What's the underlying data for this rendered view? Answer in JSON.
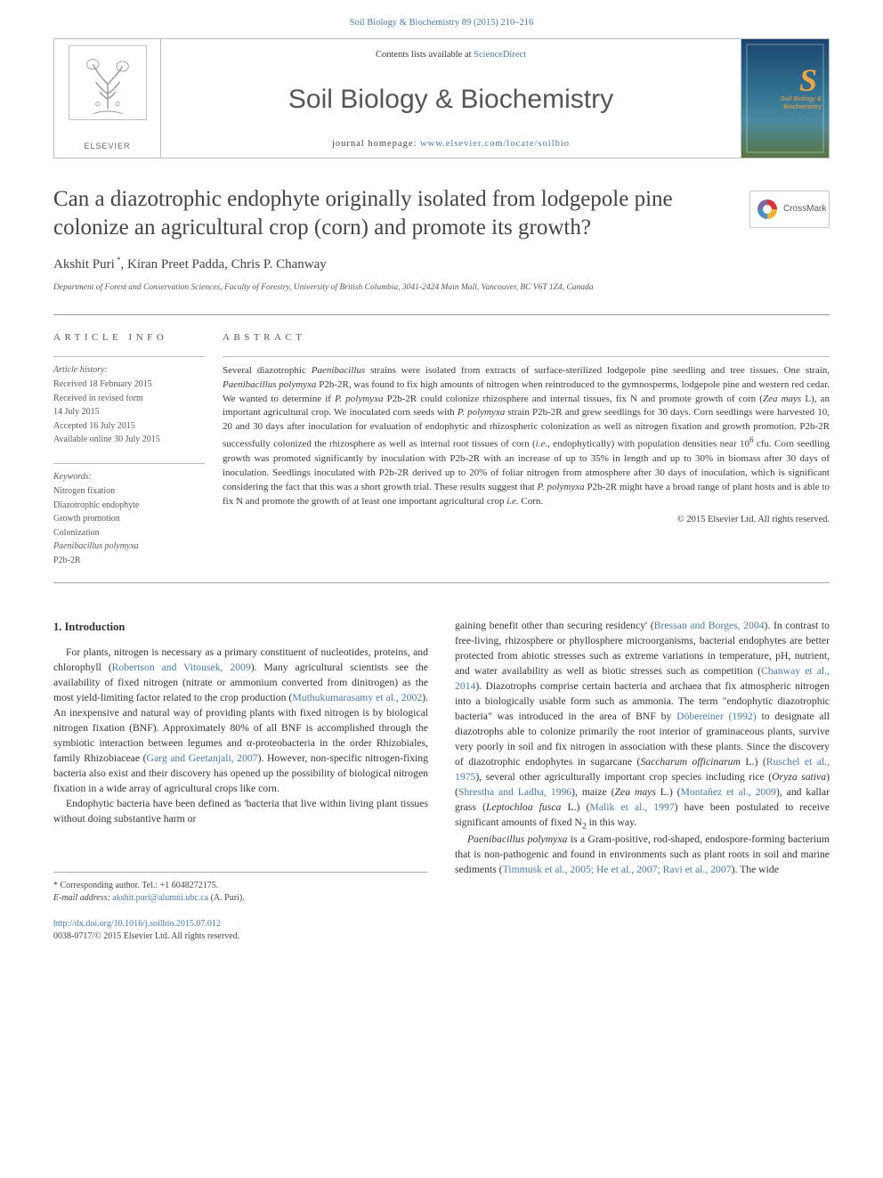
{
  "citation": "Soil Biology & Biochemistry 89 (2015) 210–216",
  "header": {
    "contents_prefix": "Contents lists available at ",
    "contents_link": "ScienceDirect",
    "journal": "Soil Biology & Biochemistry",
    "homepage_prefix": "journal homepage: ",
    "homepage_link": "www.elsevier.com/locate/soilbio",
    "publisher": "ELSEVIER",
    "cover_label": "Soil Biology &\nBiochemistry"
  },
  "colors": {
    "link": "#4a7aa8",
    "text": "#3a3a3a",
    "rule": "#9e9e9e",
    "cover_gradient_top": "#1a4570",
    "cover_gradient_bot": "#5a7540",
    "cover_accent": "#f4a340"
  },
  "crossmark": "CrossMark",
  "title": "Can a diazotrophic endophyte originally isolated from lodgepole pine colonize an agricultural crop (corn) and promote its growth?",
  "authors_html": "Akshit Puri<sup class='cor-star'> *</sup>, Kiran Preet Padda, Chris P. Chanway",
  "affiliation": "Department of Forest and Conservation Sciences, Faculty of Forestry, University of British Columbia, 3041-2424 Main Mall, Vancouver, BC V6T 1Z4, Canada",
  "article_info": {
    "heading": "article info",
    "history_label": "Article history:",
    "history": [
      "Received 18 February 2015",
      "Received in revised form",
      "14 July 2015",
      "Accepted 16 July 2015",
      "Available online 30 July 2015"
    ],
    "keywords_label": "Keywords:",
    "keywords": [
      "Nitrogen fixation",
      "Diazotrophic endophyte",
      "Growth promotion",
      "Colonization",
      "Paenibacillus polymyxa",
      "P2b-2R"
    ]
  },
  "abstract": {
    "heading": "abstract",
    "text_html": "Several diazotrophic <em>Paenibacillus</em> strains were isolated from extracts of surface-sterilized lodgepole pine seedling and tree tissues. One strain, <em>Paenibacillus polymyxa</em> P2b-2R, was found to fix high amounts of nitrogen when reintroduced to the gymnosperms, lodgepole pine and western red cedar. We wanted to determine if <em>P. polymyxa</em> P2b-2R could colonize rhizosphere and internal tissues, fix N and promote growth of corn (<em>Zea mays</em> L), an important agricultural crop. We inoculated corn seeds with <em>P. polymyxa</em> strain P2b-2R and grew seedlings for 30 days. Corn seedlings were harvested 10, 20 and 30 days after inoculation for evaluation of endophytic and rhizospheric colonization as well as nitrogen fixation and growth promotion. P2b-2R successfully colonized the rhizosphere as well as internal root tissues of corn (<em>i.e.</em>, endophytically) with population densities near 10<sup>6</sup> cfu. Corn seedling growth was promoted significantly by inoculation with P2b-2R with an increase of up to 35% in length and up to 30% in biomass after 30 days of inoculation. Seedlings inoculated with P2b-2R derived up to 20% of foliar nitrogen from atmosphere after 30 days of inoculation, which is significant considering the fact that this was a short growth trial. These results suggest that <em>P. polymyxa</em> P2b-2R might have a broad range of plant hosts and is able to fix N and promote the growth of at least one important agricultural crop <em>i.e.</em> Corn.",
    "copyright": "© 2015 Elsevier Ltd. All rights reserved."
  },
  "intro": {
    "heading": "1. Introduction",
    "col1_p1_html": "For plants, nitrogen is necessary as a primary constituent of nucleotides, proteins, and chlorophyll (<span class='cite'>Robertson and Vitousek, 2009</span>). Many agricultural scientists see the availability of fixed nitrogen (nitrate or ammonium converted from dinitrogen) as the most yield-limiting factor related to the crop production (<span class='cite'>Muthukumarasamy et al., 2002</span>). An inexpensive and natural way of providing plants with fixed nitrogen is by biological nitrogen fixation (BNF). Approximately 80% of all BNF is accomplished through the symbiotic interaction between legumes and α-proteobacteria in the order Rhizobiales, family Rhizobiaceae (<span class='cite'>Garg and Geetanjali, 2007</span>). However, non-specific nitrogen-fixing bacteria also exist and their discovery has opened up the possibility of biological nitrogen fixation in a wide array of agricultural crops like corn.",
    "col1_p2_html": "Endophytic bacteria have been defined as 'bacteria that live within living plant tissues without doing substantive harm or",
    "col2_p1_html": "gaining benefit other than securing residency' (<span class='cite'>Bressan and Borges, 2004</span>). In contrast to free-living, rhizosphere or phyllosphere microorganisms, bacterial endophytes are better protected from abiotic stresses such as extreme variations in temperature, pH, nutrient, and water availability as well as biotic stresses such as competition (<span class='cite'>Chanway et al., 2014</span>). Diazotrophs comprise certain bacteria and archaea that fix atmospheric nitrogen into a biologically usable form such as ammonia. The term \"endophytic diazotrophic bacteria\" was introduced in the area of BNF by <span class='cite'>Döbereiner (1992)</span> to designate all diazotrophs able to colonize primarily the root interior of graminaceous plants, survive very poorly in soil and fix nitrogen in association with these plants. Since the discovery of diazotrophic endophytes in sugarcane (<em>Saccharum officinarum</em> L.) (<span class='cite'>Ruschel et al., 1975</span>), several other agriculturally important crop species including rice (<em>Oryza sativa</em>) (<span class='cite'>Shrestha and Ladha, 1996</span>), maize (<em>Zea mays</em> L.) (<span class='cite'>Montañez et al., 2009</span>), and kallar grass (<em>Leptochloa fusca</em> L.) (<span class='cite'>Malik et al., 1997</span>) have been postulated to receive significant amounts of fixed N<sub>2</sub> in this way.",
    "col2_p2_html": "<em>Paenibacillus polymyxa</em> is a Gram-positive, rod-shaped, endospore-forming bacterium that is non-pathogenic and found in environments such as plant roots in soil and marine sediments (<span class='cite'>Timmusk et al., 2005; He et al., 2007; Ravi et al., 2007</span>). The wide"
  },
  "footer": {
    "cor_line": "* Corresponding author. Tel.: +1 6048272175.",
    "email_label": "E-mail address: ",
    "email": "akshit.puri@alumni.ubc.ca",
    "email_suffix": " (A. Puri).",
    "doi": "http://dx.doi.org/10.1016/j.soilbio.2015.07.012",
    "issn": "0038-0717/© 2015 Elsevier Ltd. All rights reserved."
  }
}
